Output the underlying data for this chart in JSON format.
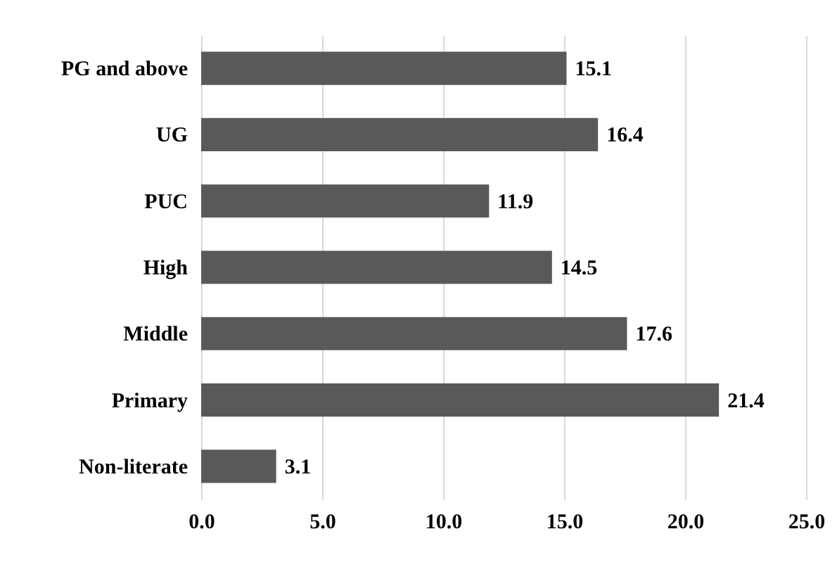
{
  "chart_data": {
    "type": "bar",
    "orientation": "horizontal",
    "categories": [
      "PG and above",
      "UG",
      "PUC",
      "High",
      "Middle",
      "Primary",
      "Non-literate"
    ],
    "values": [
      15.1,
      16.4,
      11.9,
      14.5,
      17.6,
      21.4,
      3.1
    ],
    "color": "#595959",
    "xlim": [
      0,
      25
    ],
    "xticks": [
      {
        "value": 0,
        "label": "0.0"
      },
      {
        "value": 5,
        "label": "5.0"
      },
      {
        "value": 10,
        "label": "10.0"
      },
      {
        "value": 15,
        "label": "15.0"
      },
      {
        "value": 20,
        "label": "20.0"
      },
      {
        "value": 25,
        "label": "25.0"
      }
    ],
    "grid": "x",
    "data_labels": true
  }
}
